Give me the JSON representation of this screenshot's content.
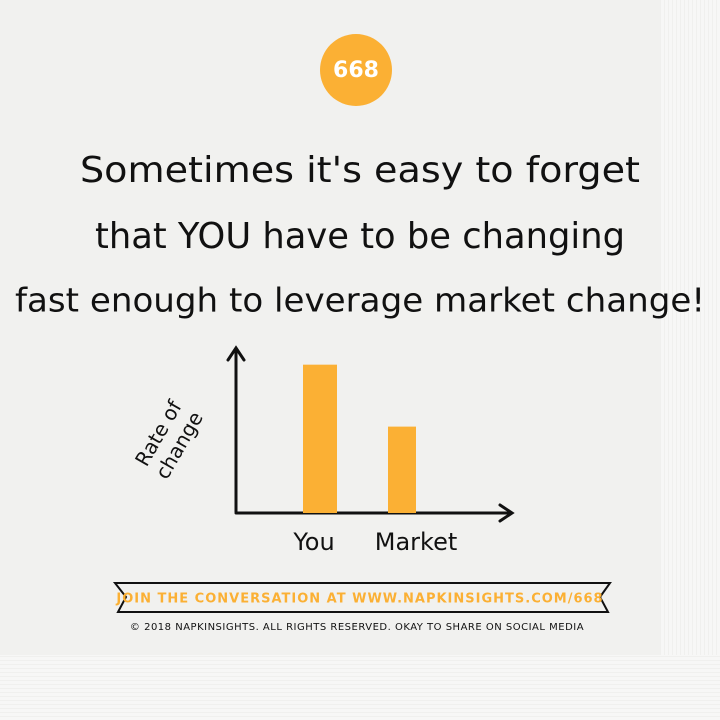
{
  "badge": "668",
  "headline": [
    "Sometimes it's easy to forget",
    "that YOU have to be changing",
    "fast enough to leverage market change!"
  ],
  "chart_data": {
    "type": "bar",
    "y_label": [
      "Rate of",
      "change"
    ],
    "categories": [
      "You",
      "Market"
    ],
    "values": [
      91,
      53
    ],
    "color": "#fbb034",
    "ylim": [
      0,
      100
    ]
  },
  "footer": {
    "banner": "JOIN THE CONVERSATION AT WWW.NAPKINSIGHTS.COM/668",
    "copyright": "© 2018 NAPKINSIGHTS. ALL RIGHTS RESERVED. OKAY TO SHARE ON SOCIAL MEDIA"
  }
}
